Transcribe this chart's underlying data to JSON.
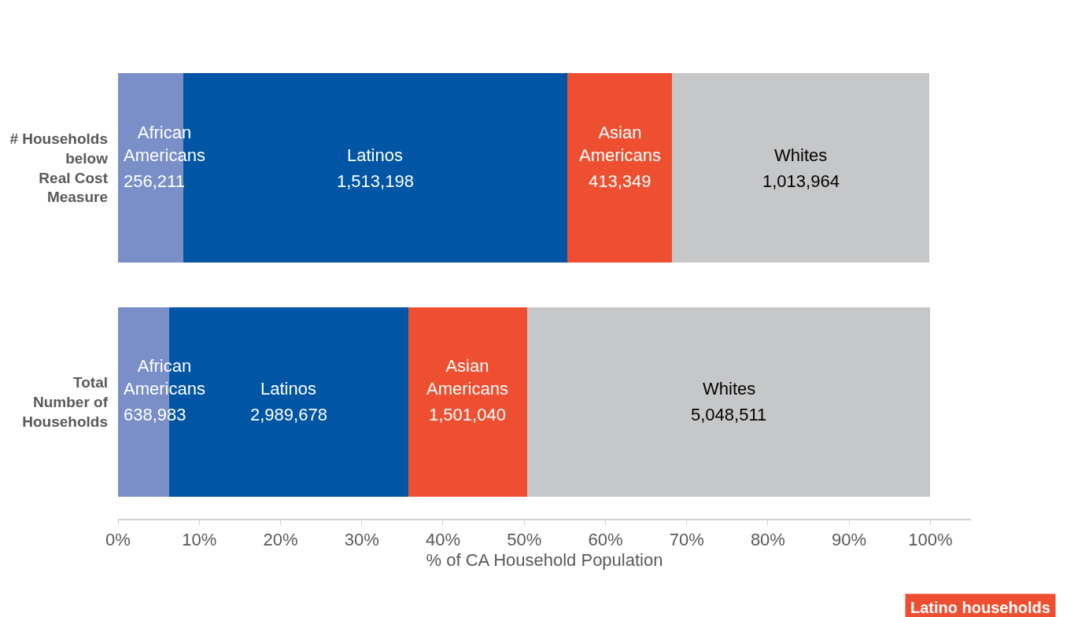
{
  "chart_data": {
    "type": "bar",
    "orientation": "horizontal",
    "stacked": true,
    "xlabel": "% of CA Household Population",
    "categories": [
      "# Households\nbelow\nReal Cost\nMeasure",
      "Total\nNumber of\nHouseholds"
    ],
    "xlim": [
      0,
      105
    ],
    "xticks": [
      {
        "value": 0,
        "label": "0%"
      },
      {
        "value": 10,
        "label": "10%"
      },
      {
        "value": 20,
        "label": "20%"
      },
      {
        "value": 30,
        "label": "30%"
      },
      {
        "value": 40,
        "label": "40%"
      },
      {
        "value": 50,
        "label": "50%"
      },
      {
        "value": 60,
        "label": "60%"
      },
      {
        "value": 70,
        "label": "70%"
      },
      {
        "value": 80,
        "label": "80%"
      },
      {
        "value": 90,
        "label": "90%"
      },
      {
        "value": 100,
        "label": "100%"
      }
    ],
    "series": [
      {
        "name": "African\nAmericans",
        "color": "#7a8fc7",
        "values": [
          8.0,
          6.3
        ]
      },
      {
        "name": "Latinos",
        "color": "#0055a5",
        "values": [
          47.3,
          29.4
        ]
      },
      {
        "name": "Asian\nAmericans",
        "color": "#ef4f31",
        "values": [
          12.9,
          14.7
        ]
      },
      {
        "name": "Whites",
        "color": "#c6c7c9",
        "values": [
          31.7,
          49.6
        ]
      }
    ],
    "annotations": [
      "256,211",
      "1,513,198",
      "413,349",
      "1,013,964",
      "638,983",
      "2,989,678",
      "1,501,040",
      "5,048,511",
      "Latino households"
    ]
  }
}
